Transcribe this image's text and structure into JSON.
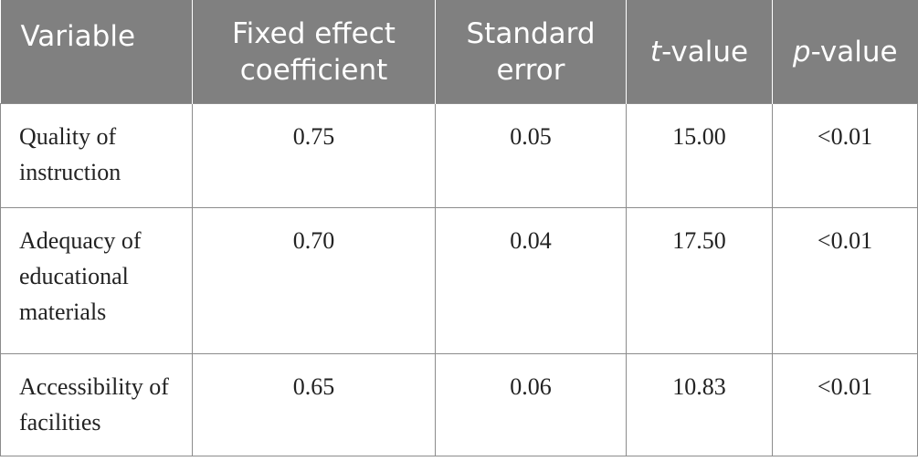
{
  "table": {
    "headers": [
      {
        "text": "Variable"
      },
      {
        "text": "Fixed effect coefficient"
      },
      {
        "text": "Standard error"
      },
      {
        "italic": "t",
        "rest": "-value"
      },
      {
        "italic": "p",
        "rest": "-value"
      }
    ],
    "rows": [
      {
        "variable": "Quality of instruction",
        "coefficient": "0.75",
        "std_error": "0.05",
        "t_value": "15.00",
        "p_value": "<0.01"
      },
      {
        "variable": "Adequacy of educational materials",
        "coefficient": "0.70",
        "std_error": "0.04",
        "t_value": "17.50",
        "p_value": "<0.01"
      },
      {
        "variable": "Accessibility of facilities",
        "coefficient": "0.65",
        "std_error": "0.06",
        "t_value": "10.83",
        "p_value": "<0.01"
      }
    ]
  },
  "colors": {
    "header_background": "#808080",
    "header_text": "#ffffff",
    "cell_border": "#8c8c8c",
    "body_text": "#222222"
  }
}
